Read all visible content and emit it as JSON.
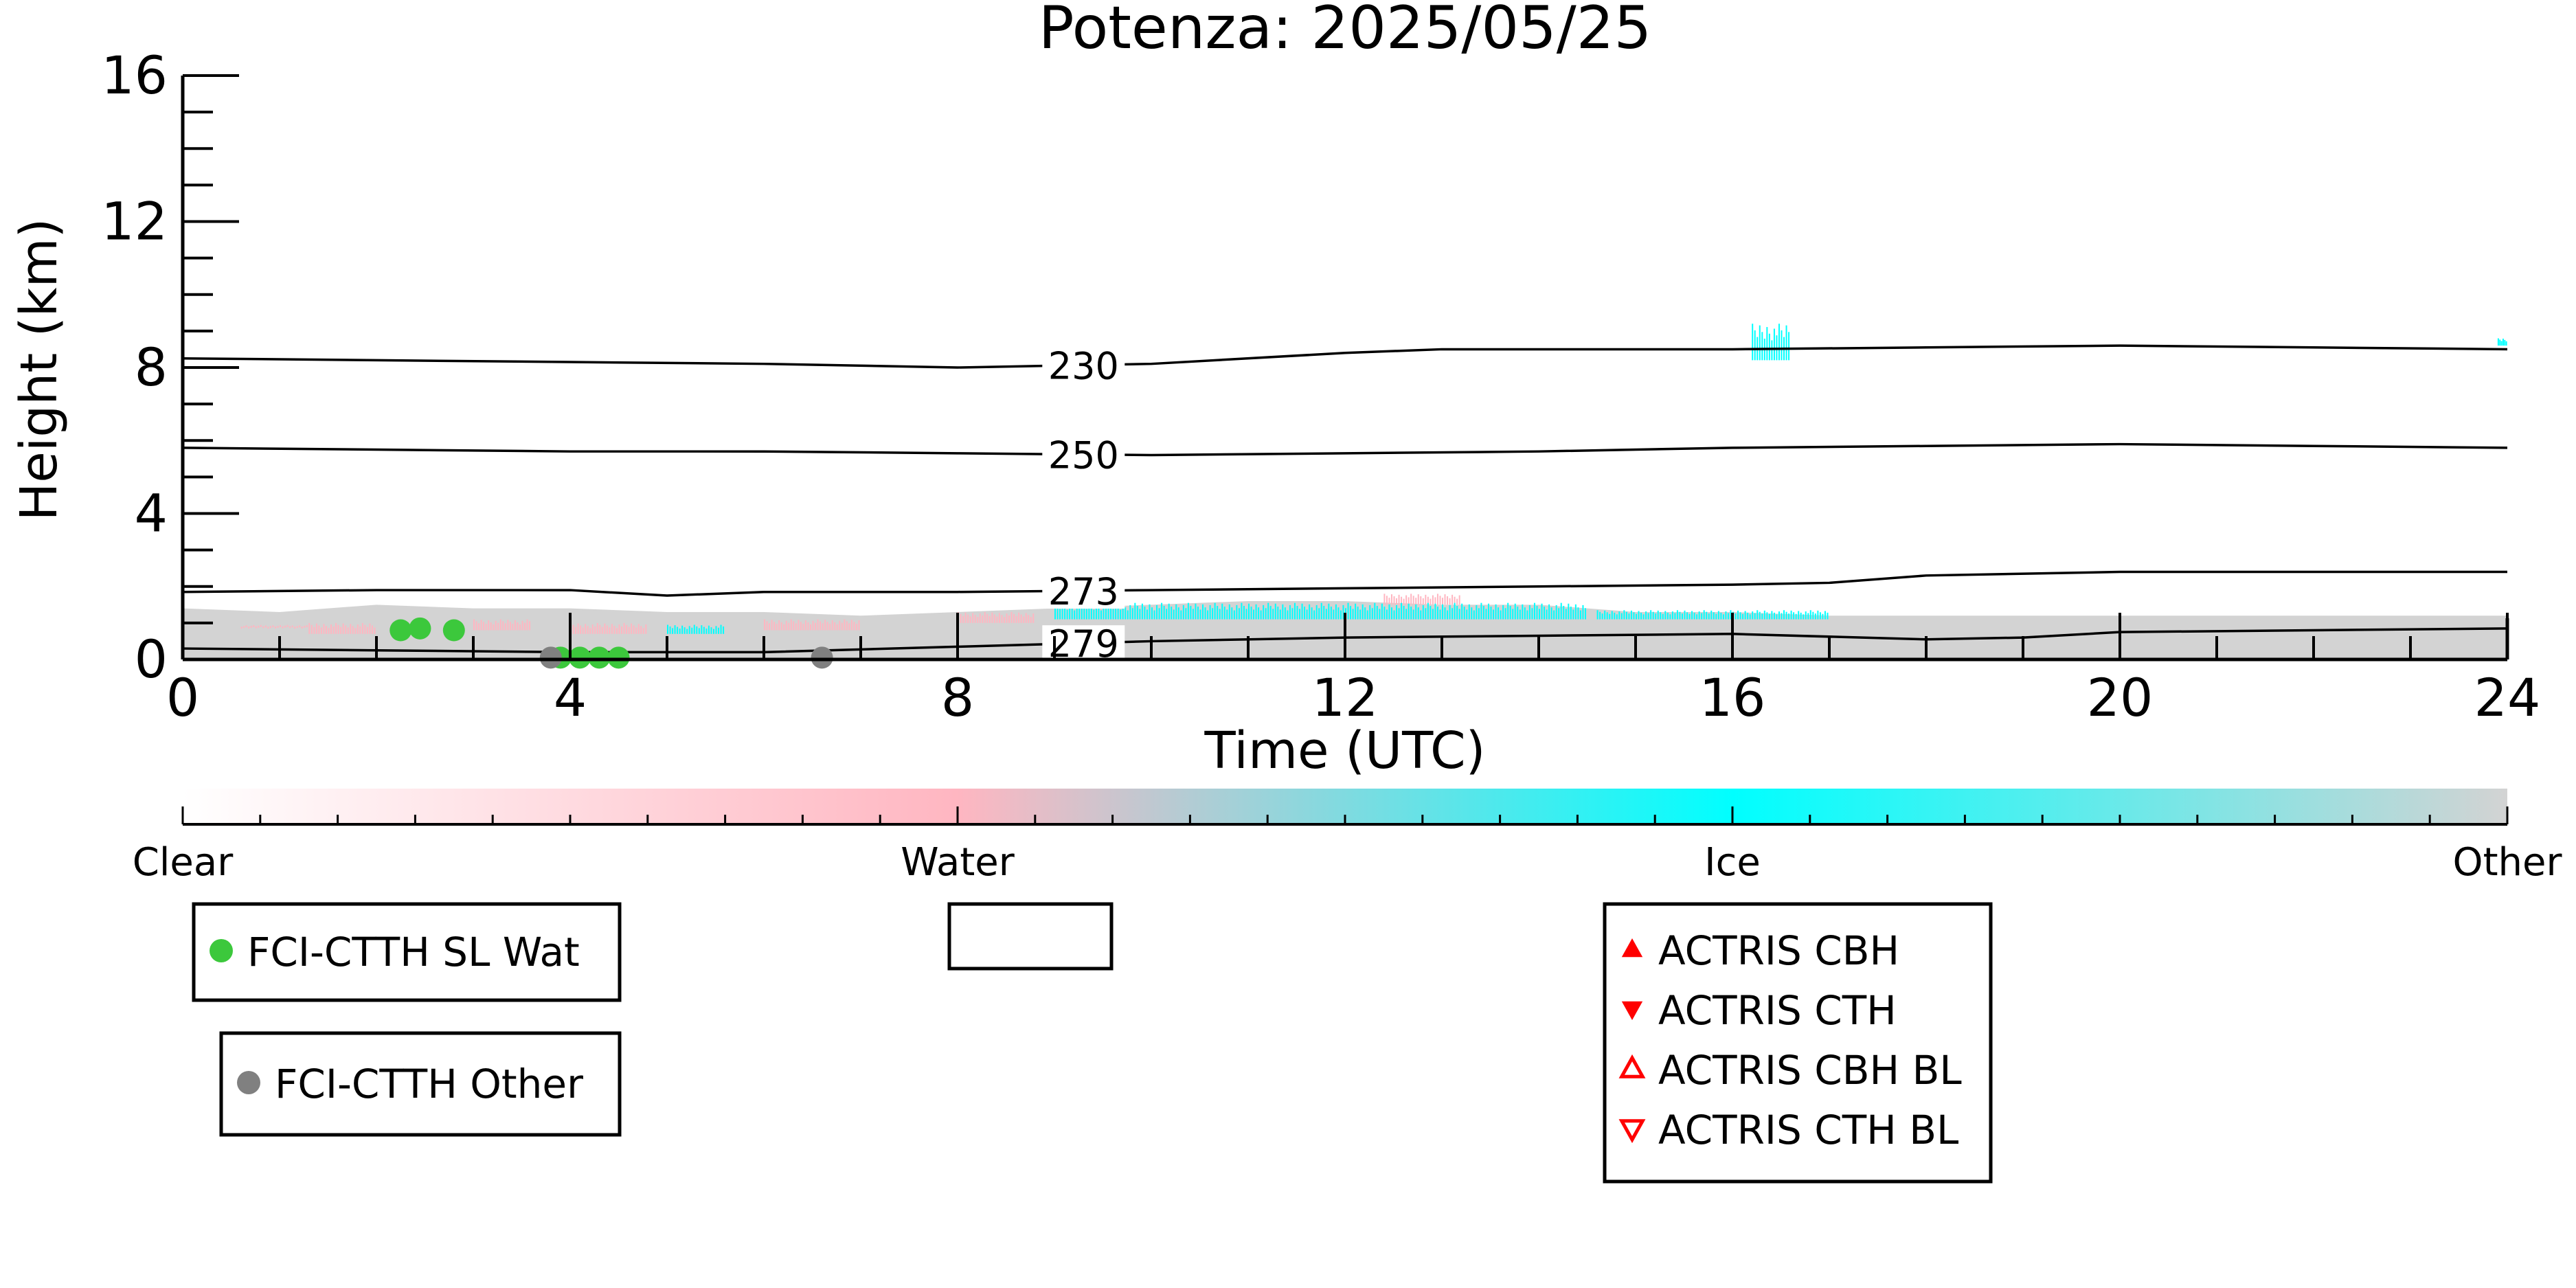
{
  "chart_data": {
    "type": "scatter",
    "title": "Potenza: 2025/05/25",
    "xlabel": "Time (UTC)",
    "ylabel": "Height (km)",
    "xlim": [
      0,
      24
    ],
    "ylim": [
      0,
      16
    ],
    "x_ticks": [
      0,
      4,
      8,
      12,
      16,
      20,
      24
    ],
    "y_ticks": [
      0,
      4,
      8,
      12,
      16
    ],
    "grid": false,
    "background_classification": {
      "colors": {
        "Clear": "#ffffff",
        "Water": "#ffb6c1",
        "Ice": "#00ffff",
        "Other": "#d3d3d3"
      },
      "other_layer": [
        [
          0,
          1.4
        ],
        [
          1,
          1.3
        ],
        [
          2,
          1.5
        ],
        [
          3,
          1.4
        ],
        [
          4,
          1.4
        ],
        [
          5,
          1.3
        ],
        [
          6,
          1.3
        ],
        [
          7,
          1.2
        ],
        [
          8,
          1.3
        ],
        [
          9,
          1.4
        ],
        [
          10,
          1.5
        ],
        [
          11,
          1.6
        ],
        [
          12,
          1.6
        ],
        [
          13,
          1.5
        ],
        [
          14,
          1.5
        ],
        [
          15,
          1.3
        ],
        [
          16,
          1.3
        ],
        [
          17,
          1.2
        ],
        [
          18,
          1.2
        ],
        [
          19,
          1.2
        ],
        [
          20,
          1.2
        ],
        [
          21,
          1.2
        ],
        [
          22,
          1.2
        ],
        [
          23,
          1.2
        ],
        [
          24,
          1.2
        ]
      ],
      "water_patches": [
        [
          0.6,
          1.3,
          0.9,
          1.0
        ],
        [
          1.3,
          2.0,
          1.0,
          0.7
        ],
        [
          3.0,
          3.6,
          1.1,
          0.8
        ],
        [
          4.0,
          4.8,
          1.0,
          0.7
        ],
        [
          6.0,
          7.0,
          1.1,
          0.8
        ],
        [
          8.0,
          8.8,
          1.3,
          1.0
        ],
        [
          12.4,
          13.2,
          1.8,
          1.5
        ]
      ],
      "ice_patches": [
        [
          9.0,
          14.5,
          1.55,
          1.1
        ],
        [
          14.6,
          17.0,
          1.35,
          1.1
        ],
        [
          5.0,
          5.6,
          0.95,
          0.7
        ],
        [
          16.2,
          16.6,
          9.2,
          8.2
        ],
        [
          23.9,
          24.0,
          8.8,
          8.6
        ]
      ]
    },
    "isotherms": [
      {
        "label": "230",
        "points": [
          [
            0,
            8.25
          ],
          [
            2,
            8.2
          ],
          [
            4,
            8.15
          ],
          [
            6,
            8.1
          ],
          [
            8,
            8.0
          ],
          [
            10,
            8.1
          ],
          [
            12,
            8.4
          ],
          [
            13,
            8.5
          ],
          [
            16,
            8.5
          ],
          [
            18,
            8.55
          ],
          [
            20,
            8.6
          ],
          [
            22,
            8.55
          ],
          [
            24,
            8.5
          ]
        ]
      },
      {
        "label": "250",
        "points": [
          [
            0,
            5.8
          ],
          [
            2,
            5.75
          ],
          [
            4,
            5.7
          ],
          [
            6,
            5.7
          ],
          [
            8,
            5.65
          ],
          [
            10,
            5.6
          ],
          [
            12,
            5.65
          ],
          [
            14,
            5.7
          ],
          [
            16,
            5.8
          ],
          [
            18,
            5.85
          ],
          [
            20,
            5.9
          ],
          [
            22,
            5.85
          ],
          [
            24,
            5.8
          ]
        ]
      },
      {
        "label": "273",
        "points": [
          [
            0,
            1.85
          ],
          [
            2,
            1.9
          ],
          [
            4,
            1.9
          ],
          [
            5,
            1.75
          ],
          [
            6,
            1.85
          ],
          [
            8,
            1.85
          ],
          [
            10,
            1.9
          ],
          [
            12,
            1.95
          ],
          [
            14,
            2.0
          ],
          [
            16,
            2.05
          ],
          [
            17,
            2.1
          ],
          [
            18,
            2.3
          ],
          [
            20,
            2.4
          ],
          [
            22,
            2.4
          ],
          [
            24,
            2.4
          ]
        ]
      },
      {
        "label": "279",
        "points": [
          [
            0,
            0.3
          ],
          [
            2,
            0.25
          ],
          [
            4,
            0.2
          ],
          [
            6,
            0.2
          ],
          [
            8,
            0.35
          ],
          [
            10,
            0.5
          ],
          [
            12,
            0.6
          ],
          [
            14,
            0.65
          ],
          [
            16,
            0.7
          ],
          [
            18,
            0.55
          ],
          [
            19,
            0.6
          ],
          [
            20,
            0.75
          ],
          [
            22,
            0.8
          ],
          [
            24,
            0.85
          ]
        ]
      }
    ],
    "series": [
      {
        "name": "FCI-CTTH SL Wat",
        "color": "#3cc83c",
        "marker": "circle",
        "x": [
          2.25,
          2.45,
          2.8,
          3.9,
          4.1,
          4.3,
          4.5
        ],
        "y": [
          0.8,
          0.85,
          0.8,
          0.05,
          0.05,
          0.05,
          0.05
        ]
      },
      {
        "name": "FCI-CTTH Other",
        "color": "#808080",
        "marker": "circle",
        "x": [
          3.8,
          6.6
        ],
        "y": [
          0.05,
          0.05
        ]
      },
      {
        "name": "ACTRIS CBH",
        "color": "#ff0000",
        "marker": "triangle-up",
        "x": [],
        "y": []
      },
      {
        "name": "ACTRIS CTH",
        "color": "#ff0000",
        "marker": "triangle-down",
        "x": [],
        "y": []
      },
      {
        "name": "ACTRIS CBH BL",
        "color": "#ff0000",
        "marker": "triangle-up-open",
        "x": [],
        "y": []
      },
      {
        "name": "ACTRIS CTH BL",
        "color": "#ff0000",
        "marker": "triangle-down-open",
        "x": [],
        "y": []
      }
    ],
    "colorbar": {
      "labels": [
        "Clear",
        "Water",
        "Ice",
        "Other"
      ],
      "stops": [
        {
          "offset": 0,
          "color": "#ffffff"
        },
        {
          "offset": 0.333,
          "color": "#ffb6c1"
        },
        {
          "offset": 0.667,
          "color": "#00ffff"
        },
        {
          "offset": 1,
          "color": "#d3d3d3"
        }
      ]
    },
    "legends": [
      {
        "name": "legend-fci-sl-wat",
        "entries": [
          {
            "label": "FCI-CTTH SL Wat",
            "marker": "circle",
            "color": "#3cc83c"
          }
        ]
      },
      {
        "name": "legend-empty",
        "entries": []
      },
      {
        "name": "legend-fci-other",
        "entries": [
          {
            "label": "FCI-CTTH Other",
            "marker": "circle",
            "color": "#808080"
          }
        ]
      },
      {
        "name": "legend-actris",
        "entries": [
          {
            "label": "ACTRIS CBH",
            "marker": "triangle-up",
            "color": "#ff0000"
          },
          {
            "label": "ACTRIS CTH",
            "marker": "triangle-down",
            "color": "#ff0000"
          },
          {
            "label": "ACTRIS CBH BL",
            "marker": "triangle-up-open",
            "color": "#ff0000"
          },
          {
            "label": "ACTRIS CTH BL",
            "marker": "triangle-down-open",
            "color": "#ff0000"
          }
        ]
      }
    ]
  }
}
